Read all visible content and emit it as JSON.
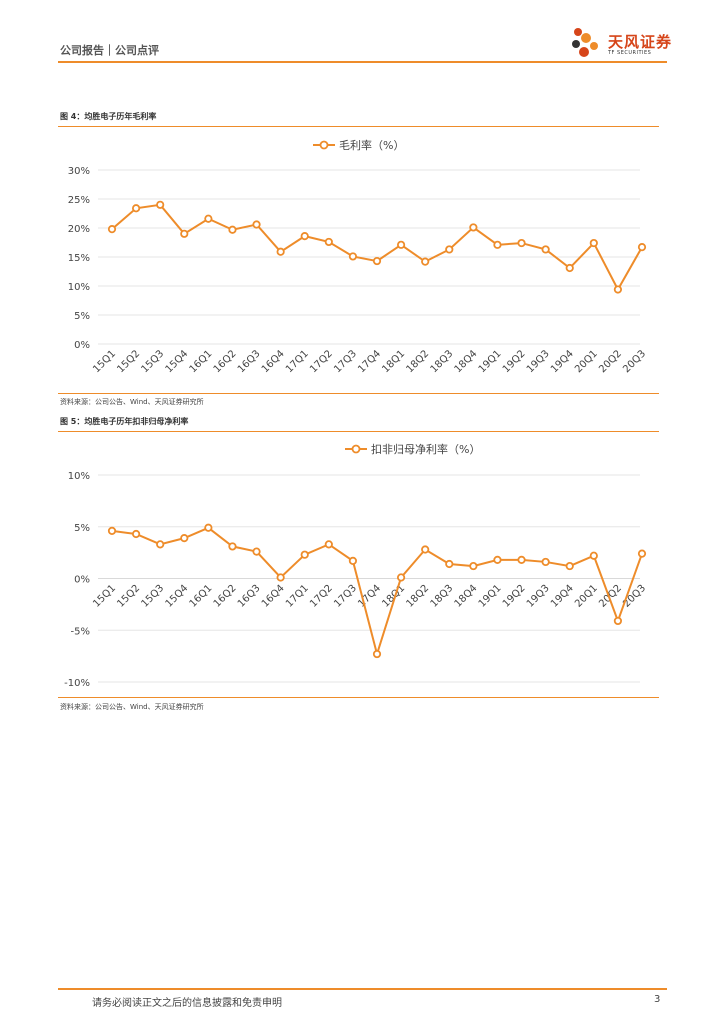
{
  "header": {
    "left_label": "公司报告｜公司点评",
    "logo_text": "天风证券",
    "logo_sub": "TF SECURITIES"
  },
  "colors": {
    "accent": "#ee8c2a",
    "brand": "#d6451a"
  },
  "figures": [
    {
      "title": "图 4：均胜电子历年毛利率",
      "source": "资料来源：公司公告、Wind、天风证券研究所"
    },
    {
      "title": "图 5：均胜电子历年扣非归母净利率",
      "source": "资料来源：公司公告、Wind、天风证券研究所"
    }
  ],
  "chart_data": [
    {
      "type": "line",
      "title": "",
      "legend": "毛利率（%）",
      "categories": [
        "15Q1",
        "15Q2",
        "15Q3",
        "15Q4",
        "16Q1",
        "16Q2",
        "16Q3",
        "16Q4",
        "17Q1",
        "17Q2",
        "17Q3",
        "17Q4",
        "18Q1",
        "18Q2",
        "18Q3",
        "18Q4",
        "19Q1",
        "19Q2",
        "19Q3",
        "19Q4",
        "20Q1",
        "20Q2",
        "20Q3"
      ],
      "series": [
        {
          "name": "毛利率（%）",
          "values": [
            19.8,
            23.4,
            24.0,
            19.0,
            21.6,
            19.7,
            20.6,
            15.9,
            18.6,
            17.6,
            15.1,
            14.3,
            17.1,
            14.2,
            16.3,
            20.1,
            17.1,
            17.4,
            16.3,
            13.1,
            17.4,
            9.4,
            16.7
          ]
        }
      ],
      "yticks": [
        "0%",
        "5%",
        "10%",
        "15%",
        "20%",
        "25%",
        "30%"
      ],
      "ylim": [
        0,
        30
      ],
      "grid": true,
      "legend_position": "top-center"
    },
    {
      "type": "line",
      "title": "",
      "legend": "扣非归母净利率（%）",
      "categories": [
        "15Q1",
        "15Q2",
        "15Q3",
        "15Q4",
        "16Q1",
        "16Q2",
        "16Q3",
        "16Q4",
        "17Q1",
        "17Q2",
        "17Q3",
        "17Q4",
        "18Q1",
        "18Q2",
        "18Q3",
        "18Q4",
        "19Q1",
        "19Q2",
        "19Q3",
        "19Q4",
        "20Q1",
        "20Q2",
        "20Q3"
      ],
      "series": [
        {
          "name": "扣非归母净利率（%）",
          "values": [
            4.6,
            4.3,
            3.3,
            3.9,
            4.9,
            3.1,
            2.6,
            0.1,
            2.3,
            3.3,
            1.7,
            -7.3,
            0.1,
            2.8,
            1.4,
            1.2,
            1.8,
            1.8,
            1.6,
            1.2,
            2.2,
            -4.1,
            2.4
          ]
        }
      ],
      "yticks": [
        "-10%",
        "-5%",
        "0%",
        "5%",
        "10%"
      ],
      "ylim": [
        -10,
        10
      ],
      "grid": true,
      "legend_position": "top-center"
    }
  ],
  "footer": {
    "disclaimer": "请务必阅读正文之后的信息披露和免责申明",
    "page": "3"
  }
}
